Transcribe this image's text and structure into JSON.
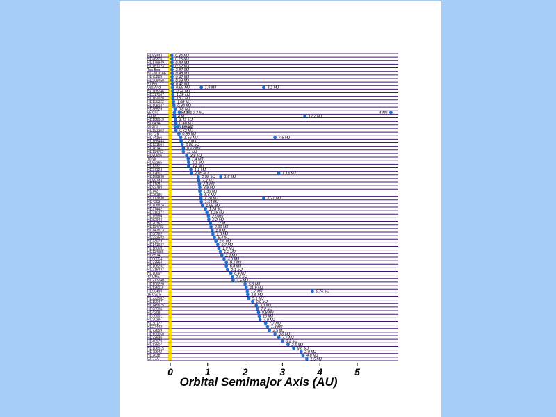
{
  "chart_data": {
    "type": "scatter",
    "xlabel": "Orbital Semimajor Axis  (AU)",
    "xlim": [
      0,
      6
    ],
    "xticks": [
      0,
      1,
      2,
      3,
      4,
      5
    ],
    "colors": {
      "star": "#ffe000",
      "planet": "#1e78d2",
      "row_line": "#401070"
    },
    "rows": [
      {
        "star": "HD83443",
        "planets": [
          {
            "a": 0.04,
            "mass": "0.34 MJ"
          }
        ]
      },
      {
        "star": "HD46375",
        "planets": [
          {
            "a": 0.04,
            "mass": "0.25 MJ"
          }
        ]
      },
      {
        "star": "HD179949",
        "planets": [
          {
            "a": 0.045,
            "mass": "0.84 MJ"
          }
        ]
      },
      {
        "star": "HD187123",
        "planets": [
          {
            "a": 0.042,
            "mass": "0.52 MJ"
          }
        ]
      },
      {
        "star": "Tau Boo",
        "planets": [
          {
            "a": 0.046,
            "mass": "3.87 MJ"
          }
        ]
      },
      {
        "star": "BD-10 3166",
        "planets": [
          {
            "a": 0.046,
            "mass": "0.48 MJ"
          }
        ]
      },
      {
        "star": "HD75289",
        "planets": [
          {
            "a": 0.046,
            "mass": "0.42 MJ"
          }
        ]
      },
      {
        "star": "HD209458",
        "planets": [
          {
            "a": 0.045,
            "mass": "0.69 MJ"
          }
        ]
      },
      {
        "star": "51 Peg",
        "planets": [
          {
            "a": 0.05,
            "mass": "0.47 MJ"
          }
        ]
      },
      {
        "star": "Ups And",
        "planets": [
          {
            "a": 0.059,
            "mass": "0.69 MJ"
          },
          {
            "a": 0.83,
            "mass": "1.9 MJ"
          },
          {
            "a": 2.5,
            "mass": "4.2 MJ"
          }
        ]
      },
      {
        "star": "HD168746",
        "planets": [
          {
            "a": 0.066,
            "mass": "0.24 MJ"
          }
        ]
      },
      {
        "star": "HD217107",
        "planets": [
          {
            "a": 0.07,
            "mass": "1.28 MJ"
          }
        ]
      },
      {
        "star": "HD162020",
        "planets": [
          {
            "a": 0.072,
            "mass": "13.7 MJ"
          }
        ]
      },
      {
        "star": "HD130322",
        "planets": [
          {
            "a": 0.088,
            "mass": "1.08 MJ"
          }
        ]
      },
      {
        "star": "HD108147",
        "planets": [
          {
            "a": 0.098,
            "mass": "0.34 MJ"
          }
        ]
      },
      {
        "star": "HD38529",
        "planets": [
          {
            "a": 0.129,
            "mass": "0.8 MJ"
          }
        ]
      },
      {
        "star": "55 Cnc",
        "planets": [
          {
            "a": 0.11,
            "mass": "0.84 MJ"
          },
          {
            "a": 0.24,
            "mass": "0.2 & 0.3 MJ"
          },
          {
            "a": 5.9,
            "mass": "4 MJ"
          }
        ]
      },
      {
        "star": "GJ 86",
        "planets": [
          {
            "a": 0.11,
            "mass": "4 MJ"
          },
          {
            "a": 3.6,
            "mass": "12.7 MJ"
          }
        ]
      },
      {
        "star": "HD195019",
        "planets": [
          {
            "a": 0.14,
            "mass": "3.43 MJ"
          }
        ]
      },
      {
        "star": "HD6434",
        "planets": [
          {
            "a": 0.15,
            "mass": "0.48 MJ"
          }
        ]
      },
      {
        "star": "Gl 876",
        "planets": [
          {
            "a": 0.13,
            "mass": "0.56 MJ"
          },
          {
            "a": 0.21,
            "mass": "1.9 MJ"
          }
        ]
      },
      {
        "star": "HD192263",
        "planets": [
          {
            "a": 0.15,
            "mass": "0.72 MJ"
          }
        ]
      },
      {
        "star": "rho CrB",
        "planets": [
          {
            "a": 0.23,
            "mass": "0.99 MJ"
          }
        ]
      },
      {
        "star": "HD74156",
        "planets": [
          {
            "a": 0.28,
            "mass": "1.56 MJ"
          },
          {
            "a": 2.8,
            "mass": "7.5 MJ"
          }
        ]
      },
      {
        "star": "HD168443",
        "planets": [
          {
            "a": 0.29,
            "mass": "7.7 MJ"
          }
        ]
      },
      {
        "star": "HD121504",
        "planets": [
          {
            "a": 0.32,
            "mass": "0.89 MJ"
          }
        ]
      },
      {
        "star": "HD16141",
        "planets": [
          {
            "a": 0.35,
            "mass": "0.22 MJ"
          }
        ]
      },
      {
        "star": "HD114762",
        "planets": [
          {
            "a": 0.35,
            "mass": "11 MJ"
          }
        ]
      },
      {
        "star": "HD80606",
        "planets": [
          {
            "a": 0.44,
            "mass": "3.9 MJ"
          }
        ]
      },
      {
        "star": "70 Vir",
        "planets": [
          {
            "a": 0.48,
            "mass": "7.4 MJ"
          }
        ]
      },
      {
        "star": "HD52265",
        "planets": [
          {
            "a": 0.49,
            "mass": "1.1 MJ"
          }
        ]
      },
      {
        "star": "HD1237",
        "planets": [
          {
            "a": 0.49,
            "mass": "3.4 MJ"
          }
        ]
      },
      {
        "star": "HD37124",
        "planets": [
          {
            "a": 0.55,
            "mass": "1.1 MJ"
          }
        ]
      },
      {
        "star": "HD12661",
        "planets": [
          {
            "a": 0.56,
            "mass": "2.85 MJ"
          },
          {
            "a": 2.9,
            "mass": "1.13 MJ"
          }
        ]
      },
      {
        "star": "HD169830",
        "planets": [
          {
            "a": 0.75,
            "mass": "2.88 MJ"
          },
          {
            "a": 1.35,
            "mass": "1.6 MJ"
          }
        ]
      },
      {
        "star": "HD89744",
        "planets": [
          {
            "a": 0.76,
            "mass": "7.2 MJ"
          }
        ]
      },
      {
        "star": "HD17051",
        "planets": [
          {
            "a": 0.78,
            "mass": "2.3 MJ"
          }
        ]
      },
      {
        "star": "HD92788",
        "planets": [
          {
            "a": 0.79,
            "mass": "3.8 MJ"
          }
        ]
      },
      {
        "star": "HD142",
        "planets": [
          {
            "a": 0.79,
            "mass": "1.36 MJ"
          }
        ]
      },
      {
        "star": "HD28185",
        "planets": [
          {
            "a": 0.82,
            "mass": "5.6 MJ"
          }
        ]
      },
      {
        "star": "HD177830",
        "planets": [
          {
            "a": 0.82,
            "mass": "1.28 MJ"
          },
          {
            "a": 2.5,
            "mass": "1.21 MJ"
          }
        ]
      },
      {
        "star": "HD4203",
        "planets": [
          {
            "a": 0.83,
            "mass": "1.64 MJ"
          }
        ]
      },
      {
        "star": "HD108874",
        "planets": [
          {
            "a": 0.86,
            "mass": "1.65 MJ"
          }
        ]
      },
      {
        "star": "HD27442",
        "planets": [
          {
            "a": 0.94,
            "mass": "1.28 MJ"
          }
        ]
      },
      {
        "star": "HD210277",
        "planets": [
          {
            "a": 0.98,
            "mass": "1.28 MJ"
          }
        ]
      },
      {
        "star": "HD19994",
        "planets": [
          {
            "a": 1.02,
            "mass": "2.0 MJ"
          }
        ]
      },
      {
        "star": "HD82943",
        "planets": [
          {
            "a": 1.03,
            "mass": "2.2 MJ"
          }
        ]
      },
      {
        "star": "HD20367",
        "planets": [
          {
            "a": 1.07,
            "mass": "1.17 MJ"
          }
        ]
      },
      {
        "star": "HD114783",
        "planets": [
          {
            "a": 1.09,
            "mass": "0.99 MJ"
          }
        ]
      },
      {
        "star": "HD147513",
        "planets": [
          {
            "a": 1.12,
            "mass": "1.0 MJ"
          }
        ]
      },
      {
        "star": "HD20782",
        "planets": [
          {
            "a": 1.14,
            "mass": "1.8 MJ"
          }
        ]
      },
      {
        "star": "HD222582",
        "planets": [
          {
            "a": 1.18,
            "mass": "5.4 MJ"
          }
        ]
      },
      {
        "star": "HD23079",
        "planets": [
          {
            "a": 1.22,
            "mass": "2.6 MJ"
          }
        ]
      },
      {
        "star": "HD141937",
        "planets": [
          {
            "a": 1.27,
            "mass": "9.7 MJ"
          }
        ]
      },
      {
        "star": "HD160691",
        "planets": [
          {
            "a": 1.3,
            "mass": "1.9 MJ"
          }
        ]
      },
      {
        "star": "HD114386",
        "planets": [
          {
            "a": 1.34,
            "mass": "1.2 MJ"
          }
        ]
      },
      {
        "star": "HD8574",
        "planets": [
          {
            "a": 1.38,
            "mass": "2.2 MJ"
          }
        ]
      },
      {
        "star": "HD50554",
        "planets": [
          {
            "a": 1.44,
            "mass": "4.9 MJ"
          }
        ]
      },
      {
        "star": "HD33564",
        "planets": [
          {
            "a": 1.5,
            "mass": "9.1 MJ"
          }
        ]
      },
      {
        "star": "HD106252",
        "planets": [
          {
            "a": 1.5,
            "mass": "6.8 MJ"
          }
        ]
      },
      {
        "star": "HD216437",
        "planets": [
          {
            "a": 1.53,
            "mass": "2.1 MJ"
          }
        ]
      },
      {
        "star": "HD10697",
        "planets": [
          {
            "a": 1.62,
            "mass": "6.4 MJ"
          }
        ]
      },
      {
        "star": "47 UMa",
        "planets": [
          {
            "a": 1.66,
            "mass": "2.6 MJ"
          }
        ]
      },
      {
        "star": "HD213240",
        "planets": [
          {
            "a": 1.68,
            "mass": "4.5 MJ"
          }
        ]
      },
      {
        "star": "HD190228",
        "planets": [
          {
            "a": 2.0,
            "mass": "5.0 MJ"
          }
        ]
      },
      {
        "star": "HD136118",
        "planets": [
          {
            "a": 2.03,
            "mass": "11.9 MJ"
          }
        ]
      },
      {
        "star": "HD50499",
        "planets": [
          {
            "a": 2.06,
            "mass": "1.7 MJ"
          },
          {
            "a": 3.8,
            "mass": "0.76 MJ"
          }
        ]
      },
      {
        "star": "16 Cyg B",
        "planets": [
          {
            "a": 2.07,
            "mass": "1.5 MJ"
          }
        ]
      },
      {
        "star": "HD222582",
        "planets": [
          {
            "a": 2.1,
            "mass": "5.1 MJ"
          }
        ]
      },
      {
        "star": "HD10647",
        "planets": [
          {
            "a": 2.2,
            "mass": "0.9 MJ"
          }
        ]
      },
      {
        "star": "HD145675",
        "planets": [
          {
            "a": 2.3,
            "mass": "3.3 MJ"
          }
        ]
      },
      {
        "star": "HD23596",
        "planets": [
          {
            "a": 2.33,
            "mass": "7.2 MJ"
          }
        ]
      },
      {
        "star": "HD4208",
        "planets": [
          {
            "a": 2.36,
            "mass": "0.8 MJ"
          }
        ]
      },
      {
        "star": "HD39091",
        "planets": [
          {
            "a": 2.38,
            "mass": "10 MJ"
          }
        ]
      },
      {
        "star": "HD2039",
        "planets": [
          {
            "a": 2.4,
            "mass": "4.9 MJ"
          }
        ]
      },
      {
        "star": "HD30177",
        "planets": [
          {
            "a": 2.55,
            "mass": "7.7 MJ"
          }
        ]
      },
      {
        "star": "HD27442",
        "planets": [
          {
            "a": 2.6,
            "mass": "1.3 MJ"
          }
        ]
      },
      {
        "star": "HD72659",
        "planets": [
          {
            "a": 2.65,
            "mass": "2.5 MJ"
          }
        ]
      },
      {
        "star": "HD196050",
        "planets": [
          {
            "a": 2.8,
            "mass": "3.0 MJ"
          }
        ]
      },
      {
        "star": "HD33636",
        "planets": [
          {
            "a": 2.9,
            "mass": "7.7 MJ"
          }
        ]
      },
      {
        "star": "HD40979",
        "planets": [
          {
            "a": 3.0,
            "mass": "3.2 MJ"
          }
        ]
      },
      {
        "star": "HD13507",
        "planets": [
          {
            "a": 3.15,
            "mass": "2.5 MJ"
          }
        ]
      },
      {
        "star": "HD106515",
        "planets": [
          {
            "a": 3.3,
            "mass": "9.6 MJ"
          }
        ]
      },
      {
        "star": "HD70642",
        "planets": [
          {
            "a": 3.5,
            "mass": "2.0 MJ"
          }
        ]
      },
      {
        "star": "HD2638",
        "planets": [
          {
            "a": 3.55,
            "mass": "4.8 MJ"
          }
        ]
      },
      {
        "star": "Gl777A",
        "planets": [
          {
            "a": 3.65,
            "mass": "1.5 MJ"
          }
        ]
      }
    ]
  }
}
